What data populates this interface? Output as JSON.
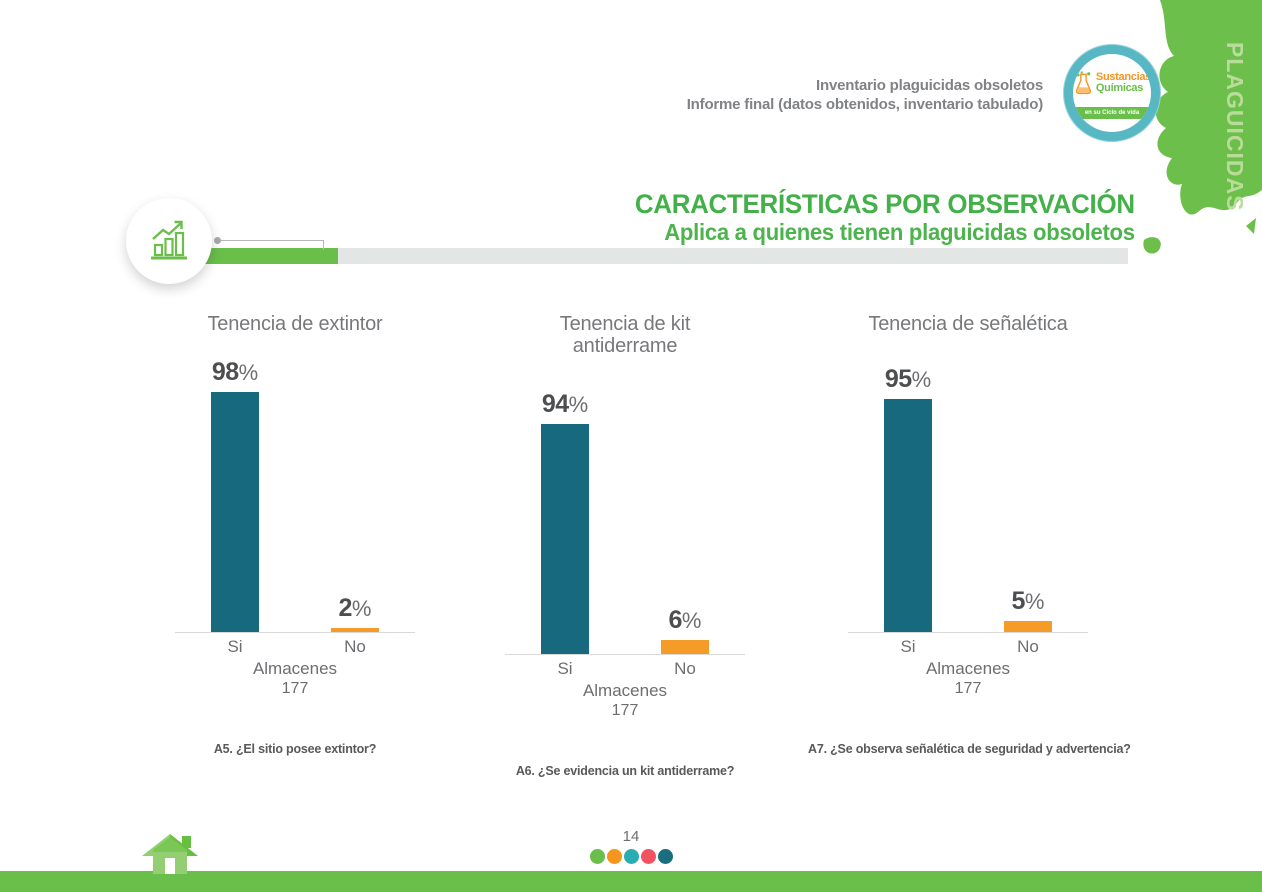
{
  "header": {
    "line1": "Inventario plaguicidas obsoletos",
    "line2": "Informe final (datos obtenidos, inventario tabulado)",
    "sidebar_label": "PLAGUICIDAS",
    "logo": {
      "title_line1": "Sustancias",
      "title_line2": "Químicas",
      "banner": "en su Ciclo de vida"
    }
  },
  "section": {
    "title": "CARACTERÍSTICAS POR OBSERVACIÓN",
    "subtitle": "Aplica a quienes tienen plaguicidas obsoletos"
  },
  "chart_data": {
    "type": "bar",
    "categories": [
      "Si",
      "No"
    ],
    "series_colors": [
      "#17697E",
      "#F49B28"
    ],
    "ylim": [
      0,
      100
    ],
    "percent_sign": "%",
    "grid": false,
    "legend": false,
    "charts": [
      {
        "title": "Tenencia de extintor",
        "values": [
          98,
          2
        ],
        "value_labels": [
          "98%",
          "2%"
        ],
        "group_label": "Almacenes",
        "group_value": "177",
        "caption": "A5. ¿El sitio posee extintor?"
      },
      {
        "title": "Tenencia de kit antiderrame",
        "values": [
          94,
          6
        ],
        "value_labels": [
          "94%",
          "6%"
        ],
        "group_label": "Almacenes",
        "group_value": "177",
        "caption": "A6. ¿Se evidencia un kit antiderrame?"
      },
      {
        "title": "Tenencia de señalética",
        "values": [
          95,
          5
        ],
        "value_labels": [
          "95%",
          "5%"
        ],
        "group_label": "Almacenes",
        "group_value": "177",
        "caption": "A7. ¿Se observa señalética de seguridad y advertencia?"
      }
    ]
  },
  "footer": {
    "page_number": "14",
    "dot_colors": [
      "#6ABF4B",
      "#F7941E",
      "#29ADB2",
      "#F25360",
      "#1B6E80"
    ]
  },
  "colors": {
    "brand_green": "#6ABF4B",
    "title_green": "#43B049",
    "bar_teal": "#17697E",
    "bar_orange": "#F49B28",
    "logo_ring_teal": "#57B7C3",
    "text_gray": "#6D6E71"
  }
}
